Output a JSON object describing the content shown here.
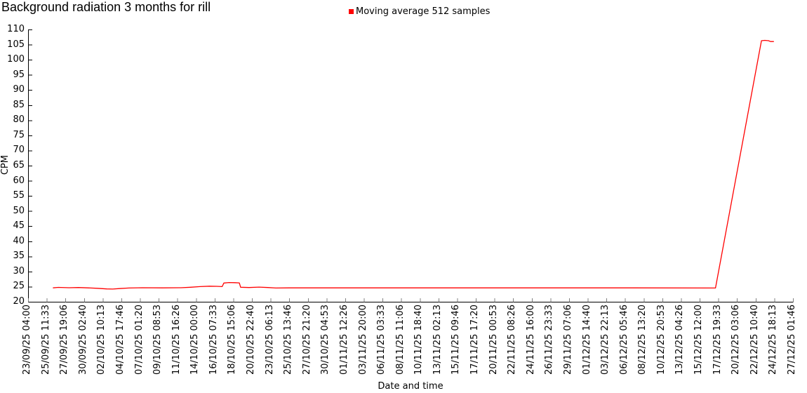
{
  "chart_data": {
    "type": "line",
    "title": "Background radiation 3 months for rill",
    "xlabel": "Date and time",
    "ylabel": "CPM",
    "legend": [
      {
        "name": "Moving average 512 samples",
        "color": "#ff0000",
        "marker": "square"
      }
    ],
    "legend_position": "top-center",
    "grid": false,
    "ylim": [
      20,
      110
    ],
    "yticks": [
      20,
      25,
      30,
      35,
      40,
      45,
      50,
      55,
      60,
      65,
      70,
      75,
      80,
      85,
      90,
      95,
      100,
      105,
      110
    ],
    "xticks": [
      "23/09/25 04:00",
      "25/09/25 11:33",
      "27/09/25 19:06",
      "30/09/25 02:40",
      "02/10/25 10:13",
      "04/10/25 17:46",
      "07/10/25 01:20",
      "09/10/25 08:53",
      "11/10/25 16:26",
      "14/10/25 00:00",
      "16/10/25 07:33",
      "18/10/25 15:06",
      "20/10/25 22:40",
      "23/10/25 06:13",
      "25/10/25 13:46",
      "27/10/25 21:20",
      "30/10/25 04:53",
      "01/11/25 12:26",
      "03/11/25 20:00",
      "06/11/25 03:33",
      "08/11/25 11:06",
      "10/11/25 18:40",
      "13/11/25 02:13",
      "15/11/25 09:46",
      "17/11/25 17:20",
      "20/11/25 00:53",
      "22/11/25 08:26",
      "24/11/25 16:00",
      "26/11/25 23:33",
      "29/11/25 07:06",
      "01/12/25 14:40",
      "03/12/25 22:13",
      "06/12/25 05:46",
      "08/12/25 13:20",
      "10/12/25 20:53",
      "13/12/25 04:26",
      "15/12/25 12:00",
      "17/12/25 19:33",
      "20/12/25 03:06",
      "22/12/25 10:40",
      "24/12/25 18:13",
      "27/12/25 01:46"
    ],
    "x_axis": {
      "start": "23/09/25 04:00",
      "end": "27/12/25 01:46",
      "span_hours": 2277.77,
      "tick_interval_hours": 55.55
    },
    "series": [
      {
        "name": "Moving average 512 samples",
        "color": "#ff0000",
        "points_format": [
          "hours_since_axis_start",
          "cpm"
        ],
        "points": [
          [
            74,
            24.6
          ],
          [
            90,
            24.75
          ],
          [
            122,
            24.65
          ],
          [
            150,
            24.7
          ],
          [
            178,
            24.6
          ],
          [
            206,
            24.45
          ],
          [
            234,
            24.25
          ],
          [
            252,
            24.2
          ],
          [
            272,
            24.35
          ],
          [
            300,
            24.55
          ],
          [
            340,
            24.65
          ],
          [
            400,
            24.6
          ],
          [
            455,
            24.65
          ],
          [
            484,
            24.8
          ],
          [
            512,
            25.0
          ],
          [
            540,
            25.15
          ],
          [
            562,
            25.1
          ],
          [
            578,
            25.0
          ],
          [
            583,
            26.2
          ],
          [
            598,
            26.35
          ],
          [
            616,
            26.3
          ],
          [
            629,
            26.25
          ],
          [
            633,
            24.8
          ],
          [
            658,
            24.7
          ],
          [
            688,
            24.85
          ],
          [
            714,
            24.7
          ],
          [
            738,
            24.55
          ],
          [
            778,
            24.6
          ],
          [
            860,
            24.6
          ],
          [
            1050,
            24.6
          ],
          [
            1400,
            24.6
          ],
          [
            1800,
            24.6
          ],
          [
            2047,
            24.55
          ],
          [
            2184,
            106.3
          ],
          [
            2194,
            106.4
          ],
          [
            2205,
            106.3
          ],
          [
            2211,
            106.0
          ],
          [
            2221,
            106.0
          ]
        ]
      }
    ],
    "colors": {
      "background": "#ffffff",
      "axis": "#000000",
      "x_tick_marks": "#808080",
      "y_tick_marks": "#000000",
      "text": "#000000"
    }
  }
}
